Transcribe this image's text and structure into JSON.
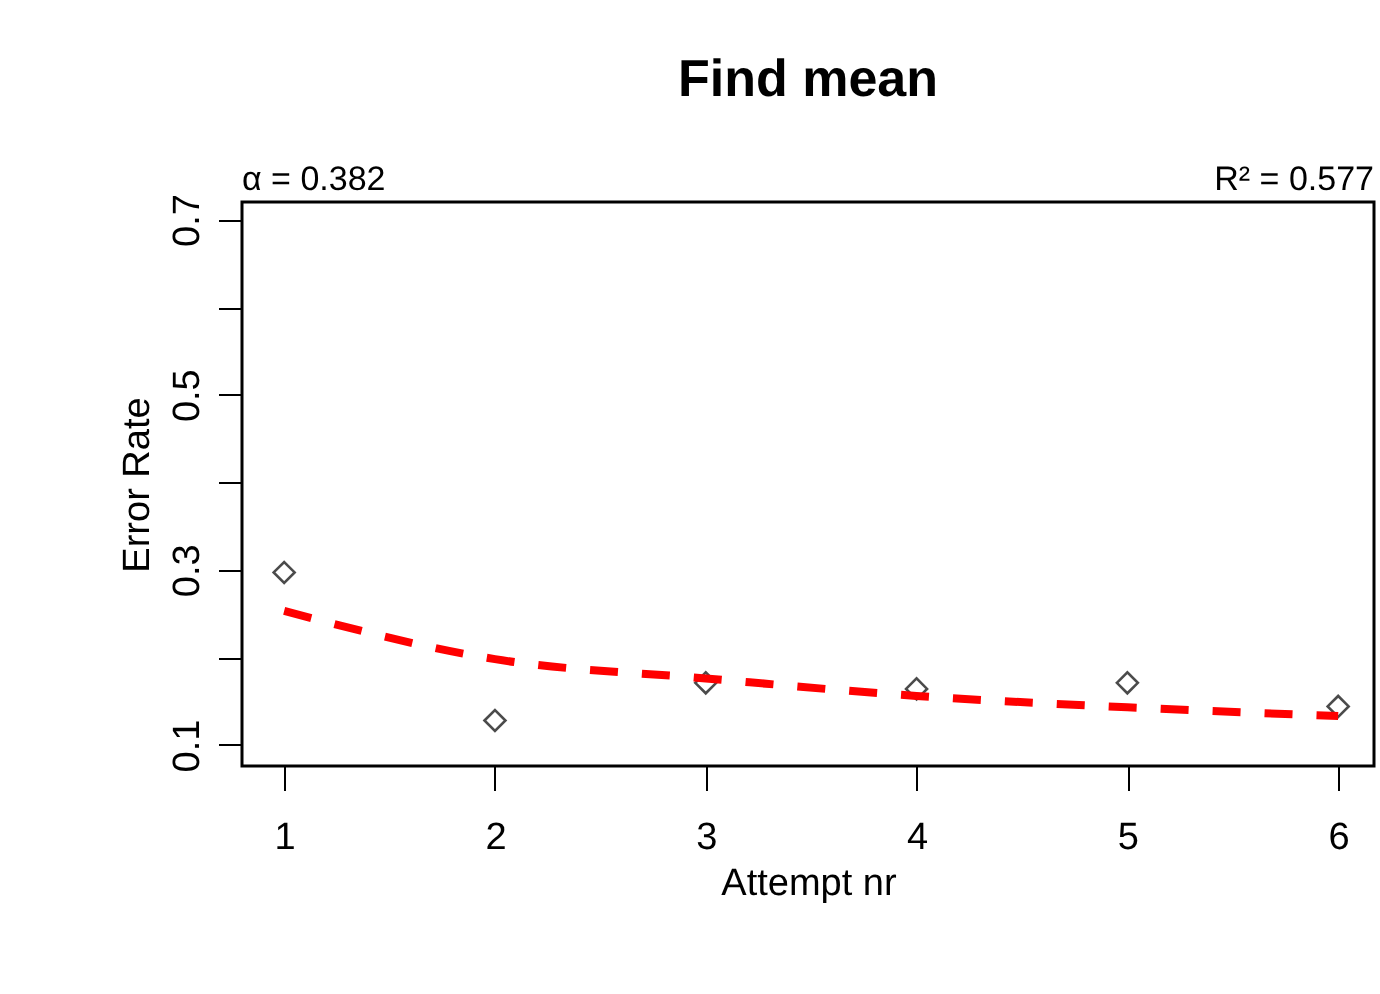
{
  "chart_data": {
    "type": "scatter",
    "title": "Find mean",
    "xlabel": "Attempt nr",
    "ylabel": "Error Rate",
    "x": [
      1,
      2,
      3,
      4,
      5,
      6
    ],
    "series": [
      {
        "color": "#000000",
        "marker": "diamond",
        "values": [
          0.297,
          0.128,
          0.171,
          0.164,
          0.171,
          0.144
        ]
      },
      {
        "type": "line",
        "color": "#ff0000",
        "line_style": "dashed",
        "marker": "none",
        "x": [
          1,
          2,
          3,
          4,
          5,
          6
        ],
        "values": [
          0.253,
          0.198,
          0.176,
          0.156,
          0.143,
          0.133
        ]
      }
    ],
    "annotations": [
      "α = 0.382",
      "R² = 0.577"
    ],
    "xlim": [
      0.8,
      6.17
    ],
    "ylim": [
      0.076,
      0.72
    ],
    "xticks": [
      1,
      2,
      3,
      4,
      5,
      6
    ],
    "yticks": [
      0.1,
      {
        "value": 0.2,
        "label": null
      },
      0.3,
      {
        "value": 0.4,
        "label": null
      },
      0.5,
      {
        "value": 0.6,
        "label": null
      },
      0.7
    ],
    "grid": false
  }
}
